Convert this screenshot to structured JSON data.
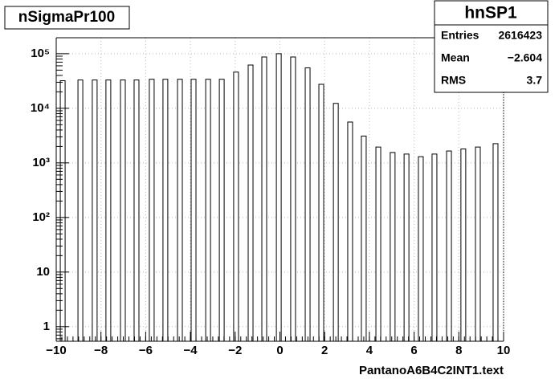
{
  "chart_data": {
    "type": "bar",
    "title": "nSigmaPr100",
    "x_label": "PantanoA6B4C2INT1.text",
    "x": [
      -9.71,
      -8.92,
      -8.28,
      -7.67,
      -7.02,
      -6.41,
      -5.73,
      -5.12,
      -4.47,
      -3.86,
      -3.21,
      -2.6,
      -1.96,
      -1.31,
      -0.7,
      -0.05,
      0.59,
      1.24,
      1.85,
      2.5,
      3.14,
      3.75,
      4.4,
      5.04,
      5.66,
      6.3,
      6.91,
      7.56,
      8.2,
      8.85,
      9.64
    ],
    "values": [
      32000,
      33000,
      33000,
      33000,
      33000,
      33000,
      34000,
      34000,
      34000,
      34000,
      34000,
      34000,
      46000,
      62000,
      87000,
      100000,
      87000,
      55000,
      27500,
      12300,
      5600,
      3100,
      1950,
      1550,
      1450,
      1300,
      1450,
      1650,
      1800,
      1950,
      2250
    ],
    "xlim": [
      -10,
      10
    ],
    "xticks": [
      {
        "value": -10,
        "label": "−10"
      },
      {
        "value": -8,
        "label": "−8"
      },
      {
        "value": -6,
        "label": "−6"
      },
      {
        "value": -4,
        "label": "−4"
      },
      {
        "value": -2,
        "label": "−2"
      },
      0,
      2,
      4,
      6,
      8,
      10
    ],
    "ylim": [
      0.54,
      196000
    ],
    "log_y": true,
    "yticks": [
      1,
      10,
      {
        "value": 100,
        "label": "10²"
      },
      {
        "value": 1000,
        "label": "10³"
      },
      {
        "value": 10000,
        "label": "10⁴"
      },
      {
        "value": 100000,
        "label": "10⁵"
      }
    ],
    "grid": true,
    "color": "#ffffff",
    "stats": {
      "title": "hnSP1",
      "rows": [
        [
          "Entries",
          "2616423"
        ],
        [
          "Mean",
          "−2.604"
        ],
        [
          "RMS",
          "3.7"
        ]
      ]
    }
  }
}
